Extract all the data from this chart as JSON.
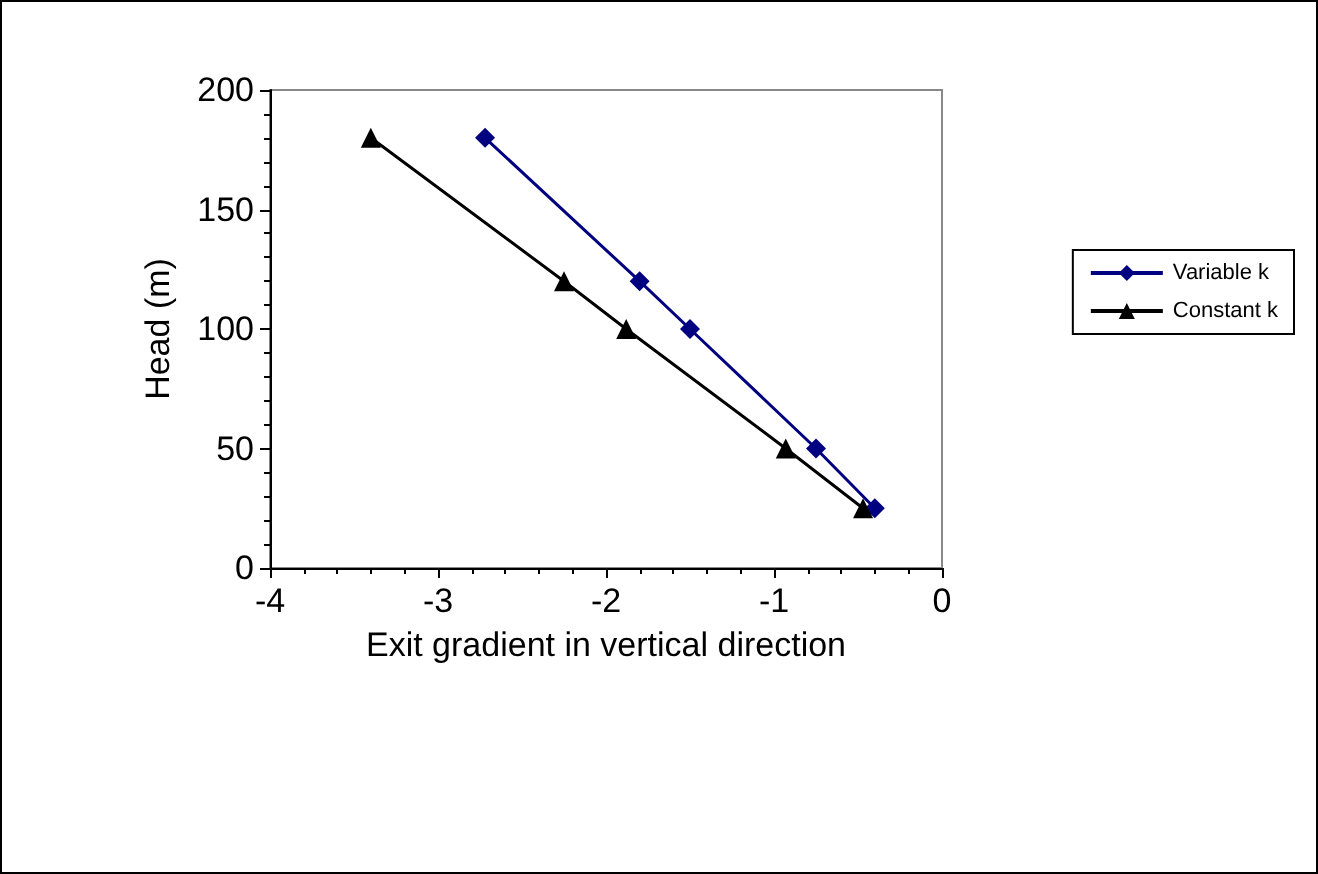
{
  "chart_data": {
    "type": "line",
    "xlabel": "Exit gradient in vertical direction",
    "ylabel": "Head (m)",
    "xlim": [
      -4,
      0
    ],
    "xticks": [
      -4,
      -3,
      -2,
      -1,
      0
    ],
    "ylim": [
      0,
      200
    ],
    "yticks": [
      0,
      50,
      100,
      150,
      200
    ],
    "grid": false,
    "legend": "right",
    "series": [
      {
        "name": "Variable k",
        "color": "#000080",
        "marker": "diamond",
        "x": [
          -2.72,
          -1.8,
          -1.5,
          -0.75,
          -0.4
        ],
        "values": [
          180,
          120,
          100,
          50,
          25
        ]
      },
      {
        "name": "Constant k",
        "color": "#000000",
        "marker": "triangle",
        "x": [
          -3.4,
          -2.25,
          -1.88,
          -0.93,
          -0.47
        ],
        "values": [
          180,
          120,
          100,
          50,
          25
        ]
      }
    ]
  }
}
